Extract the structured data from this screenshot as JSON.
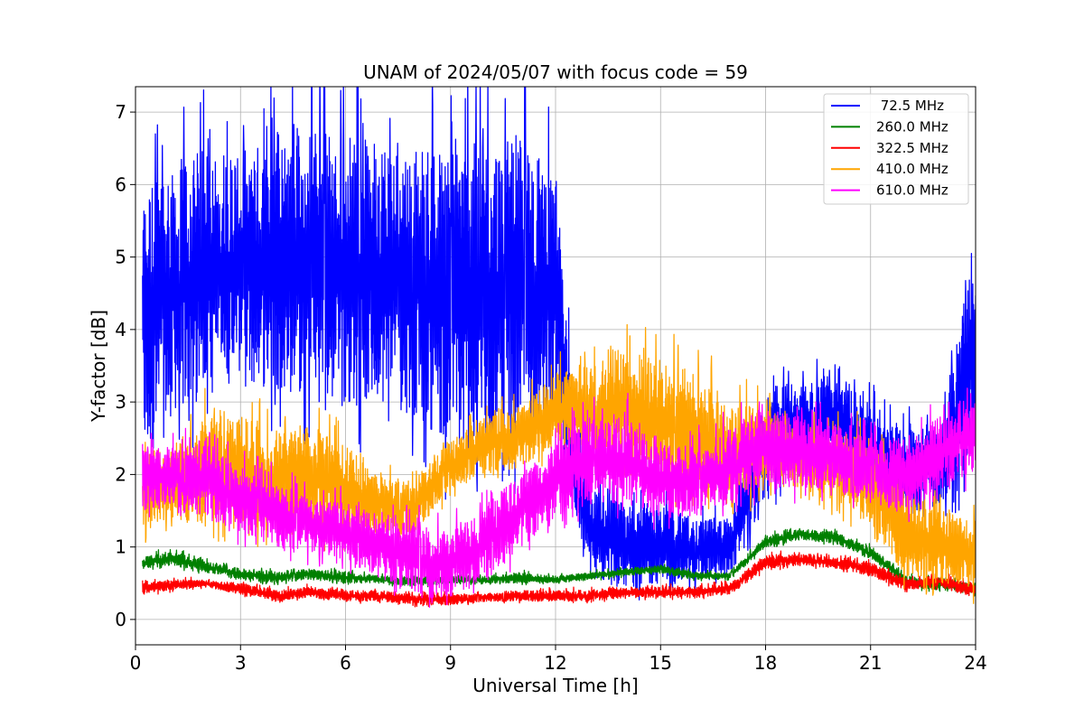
{
  "chart_data": {
    "type": "line",
    "title": "UNAM of 2024/05/07 with focus code = 59",
    "xlabel": "Universal Time [h]",
    "ylabel": "Y-factor [dB]",
    "xlim": [
      0,
      24
    ],
    "ylim": [
      -0.35,
      7.35
    ],
    "xticks": [
      0,
      3,
      6,
      9,
      12,
      15,
      18,
      21,
      24
    ],
    "yticks": [
      0,
      1,
      2,
      3,
      4,
      5,
      6,
      7
    ],
    "grid": true,
    "legend_position": "top-right",
    "series": [
      {
        "name": " 72.5 MHz",
        "color": "#0000ff",
        "data_start": 0.2,
        "data_end": 24,
        "envelope": [
          [
            0.2,
            2.2,
            5.9
          ],
          [
            1.0,
            2.6,
            6.3
          ],
          [
            2.0,
            3.3,
            6.5
          ],
          [
            3.0,
            3.2,
            6.5
          ],
          [
            4.0,
            3.2,
            6.6
          ],
          [
            5.0,
            3.0,
            6.8
          ],
          [
            6.0,
            3.0,
            6.7
          ],
          [
            7.0,
            3.0,
            6.6
          ],
          [
            8.0,
            2.8,
            6.5
          ],
          [
            9.0,
            2.4,
            6.5
          ],
          [
            10.0,
            2.1,
            6.6
          ],
          [
            11.0,
            2.6,
            6.6
          ],
          [
            12.0,
            2.7,
            6.2
          ],
          [
            12.5,
            1.5,
            3.0
          ],
          [
            13.0,
            0.6,
            1.8
          ],
          [
            14.0,
            0.4,
            1.6
          ],
          [
            15.0,
            0.5,
            1.6
          ],
          [
            16.0,
            0.5,
            1.4
          ],
          [
            17.0,
            0.6,
            1.4
          ],
          [
            18.0,
            1.6,
            3.2
          ],
          [
            19.0,
            2.2,
            3.3
          ],
          [
            20.0,
            2.2,
            3.3
          ],
          [
            21.0,
            1.7,
            3.0
          ],
          [
            22.0,
            1.4,
            2.6
          ],
          [
            23.0,
            1.6,
            2.7
          ],
          [
            23.8,
            2.0,
            4.7
          ],
          [
            24.0,
            2.5,
            5.0
          ]
        ]
      },
      {
        "name": "260.0 MHz",
        "color": "#008000",
        "data_start": 0.2,
        "data_end": 24,
        "envelope": [
          [
            0.2,
            0.7,
            0.85
          ],
          [
            1.0,
            0.75,
            0.95
          ],
          [
            2.0,
            0.65,
            0.8
          ],
          [
            3.0,
            0.55,
            0.7
          ],
          [
            4.0,
            0.5,
            0.65
          ],
          [
            5.0,
            0.55,
            0.7
          ],
          [
            6.0,
            0.5,
            0.65
          ],
          [
            7.0,
            0.5,
            0.6
          ],
          [
            8.0,
            0.45,
            0.6
          ],
          [
            9.0,
            0.5,
            0.6
          ],
          [
            10.0,
            0.5,
            0.6
          ],
          [
            11.0,
            0.5,
            0.65
          ],
          [
            12.0,
            0.5,
            0.6
          ],
          [
            13.0,
            0.55,
            0.65
          ],
          [
            14.0,
            0.6,
            0.7
          ],
          [
            15.0,
            0.65,
            0.75
          ],
          [
            16.0,
            0.55,
            0.65
          ],
          [
            17.0,
            0.55,
            0.65
          ],
          [
            18.0,
            1.0,
            1.15
          ],
          [
            19.0,
            1.1,
            1.25
          ],
          [
            20.0,
            1.05,
            1.2
          ],
          [
            21.0,
            0.85,
            1.0
          ],
          [
            22.0,
            0.45,
            0.6
          ],
          [
            23.0,
            0.4,
            0.55
          ],
          [
            24.0,
            0.35,
            0.5
          ]
        ]
      },
      {
        "name": "322.5 MHz",
        "color": "#ff0000",
        "data_start": 0.2,
        "data_end": 24,
        "envelope": [
          [
            0.2,
            0.35,
            0.5
          ],
          [
            1.0,
            0.4,
            0.55
          ],
          [
            2.0,
            0.45,
            0.55
          ],
          [
            3.0,
            0.35,
            0.5
          ],
          [
            4.0,
            0.25,
            0.4
          ],
          [
            5.0,
            0.3,
            0.45
          ],
          [
            6.0,
            0.25,
            0.4
          ],
          [
            7.0,
            0.25,
            0.4
          ],
          [
            8.0,
            0.2,
            0.35
          ],
          [
            9.0,
            0.2,
            0.35
          ],
          [
            10.0,
            0.25,
            0.35
          ],
          [
            11.0,
            0.25,
            0.4
          ],
          [
            12.0,
            0.25,
            0.4
          ],
          [
            13.0,
            0.25,
            0.4
          ],
          [
            14.0,
            0.3,
            0.45
          ],
          [
            15.0,
            0.3,
            0.45
          ],
          [
            16.0,
            0.3,
            0.45
          ],
          [
            17.0,
            0.35,
            0.5
          ],
          [
            18.0,
            0.7,
            0.9
          ],
          [
            19.0,
            0.75,
            0.9
          ],
          [
            20.0,
            0.7,
            0.85
          ],
          [
            21.0,
            0.6,
            0.8
          ],
          [
            22.0,
            0.4,
            0.55
          ],
          [
            23.0,
            0.45,
            0.6
          ],
          [
            24.0,
            0.3,
            0.5
          ]
        ]
      },
      {
        "name": "410.0 MHz",
        "color": "#ffa500",
        "data_start": 0.2,
        "data_end": 24,
        "envelope": [
          [
            0.2,
            1.2,
            2.3
          ],
          [
            1.0,
            1.4,
            2.4
          ],
          [
            2.0,
            1.3,
            2.8
          ],
          [
            3.0,
            1.3,
            2.8
          ],
          [
            4.0,
            1.2,
            2.6
          ],
          [
            5.0,
            1.2,
            2.7
          ],
          [
            6.0,
            1.1,
            2.4
          ],
          [
            7.0,
            1.2,
            2.0
          ],
          [
            8.0,
            1.2,
            1.9
          ],
          [
            9.0,
            1.8,
            2.5
          ],
          [
            10.0,
            2.0,
            2.8
          ],
          [
            11.0,
            2.1,
            2.9
          ],
          [
            12.0,
            2.4,
            3.4
          ],
          [
            13.0,
            2.2,
            3.5
          ],
          [
            14.0,
            2.2,
            3.7
          ],
          [
            15.0,
            1.9,
            3.6
          ],
          [
            16.0,
            1.7,
            3.4
          ],
          [
            17.0,
            1.5,
            3.0
          ],
          [
            18.0,
            1.9,
            2.9
          ],
          [
            19.0,
            1.8,
            2.7
          ],
          [
            20.0,
            1.6,
            2.6
          ],
          [
            21.0,
            1.3,
            2.5
          ],
          [
            22.0,
            0.6,
            1.8
          ],
          [
            23.0,
            0.5,
            1.5
          ],
          [
            24.0,
            0.4,
            1.4
          ]
        ]
      },
      {
        "name": "610.0 MHz",
        "color": "#ff00ff",
        "data_start": 0.2,
        "data_end": 24,
        "envelope": [
          [
            0.2,
            1.5,
            2.3
          ],
          [
            1.0,
            1.6,
            2.4
          ],
          [
            2.0,
            1.4,
            2.4
          ],
          [
            3.0,
            1.2,
            2.1
          ],
          [
            4.0,
            1.0,
            1.9
          ],
          [
            5.0,
            0.9,
            1.7
          ],
          [
            6.0,
            0.8,
            1.6
          ],
          [
            7.0,
            0.6,
            1.5
          ],
          [
            8.0,
            0.3,
            1.3
          ],
          [
            9.0,
            0.3,
            1.2
          ],
          [
            10.0,
            0.5,
            1.6
          ],
          [
            11.0,
            1.0,
            2.0
          ],
          [
            12.0,
            1.4,
            2.5
          ],
          [
            13.0,
            1.6,
            2.8
          ],
          [
            14.0,
            1.6,
            2.8
          ],
          [
            15.0,
            1.4,
            2.4
          ],
          [
            16.0,
            1.4,
            2.4
          ],
          [
            17.0,
            1.6,
            2.6
          ],
          [
            18.0,
            1.8,
            2.9
          ],
          [
            19.0,
            1.8,
            2.8
          ],
          [
            20.0,
            1.8,
            2.7
          ],
          [
            21.0,
            1.6,
            2.5
          ],
          [
            22.0,
            1.5,
            2.5
          ],
          [
            23.0,
            1.8,
            2.8
          ],
          [
            24.0,
            2.0,
            3.0
          ]
        ]
      }
    ]
  }
}
